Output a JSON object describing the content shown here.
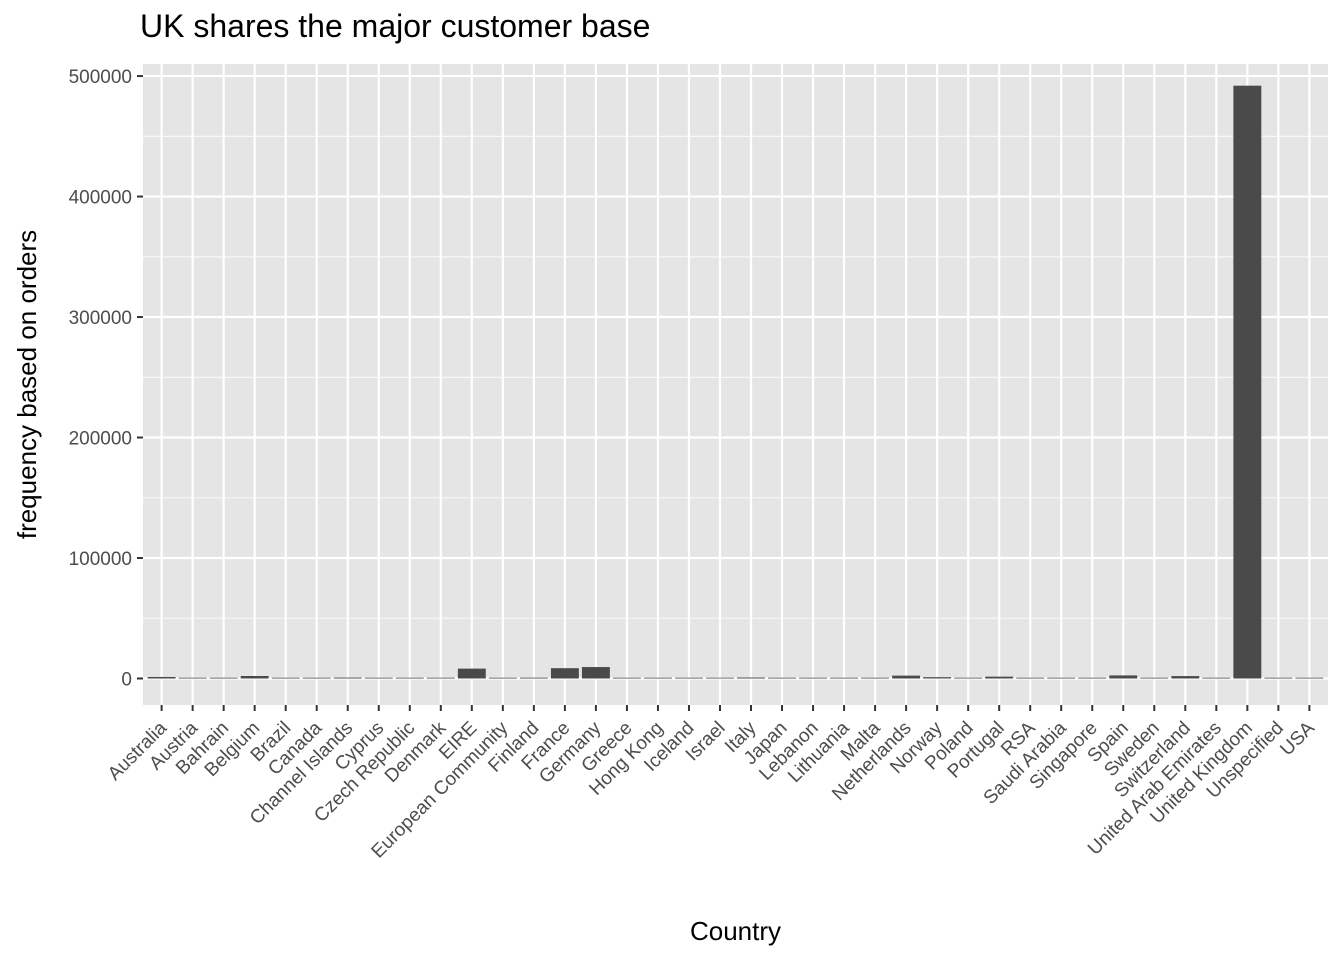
{
  "chart_data": {
    "type": "bar",
    "title": "UK shares the major customer base",
    "xlabel": "Country",
    "ylabel": "frequency based on orders",
    "ylim": [
      -22000,
      510000
    ],
    "yticks": [
      0,
      100000,
      200000,
      300000,
      400000,
      500000
    ],
    "grid": true,
    "legend": "none",
    "colors": {
      "bar": "#4a4a4a",
      "panel": "#e5e5e5",
      "grid": "#ffffff",
      "tick": "#333333"
    },
    "categories": [
      "Australia",
      "Austria",
      "Bahrain",
      "Belgium",
      "Brazil",
      "Canada",
      "Channel Islands",
      "Cyprus",
      "Czech Republic",
      "Denmark",
      "EIRE",
      "European Community",
      "Finland",
      "France",
      "Germany",
      "Greece",
      "Hong Kong",
      "Iceland",
      "Israel",
      "Italy",
      "Japan",
      "Lebanon",
      "Lithuania",
      "Malta",
      "Netherlands",
      "Norway",
      "Poland",
      "Portugal",
      "RSA",
      "Saudi Arabia",
      "Singapore",
      "Spain",
      "Sweden",
      "Switzerland",
      "United Arab Emirates",
      "United Kingdom",
      "Unspecified",
      "USA"
    ],
    "values": [
      1259,
      401,
      19,
      2069,
      32,
      151,
      758,
      622,
      30,
      389,
      8196,
      61,
      695,
      8557,
      9495,
      146,
      288,
      182,
      297,
      803,
      358,
      45,
      35,
      127,
      2371,
      1086,
      341,
      1519,
      58,
      10,
      229,
      2533,
      462,
      2002,
      68,
      492000,
      446,
      291
    ]
  }
}
